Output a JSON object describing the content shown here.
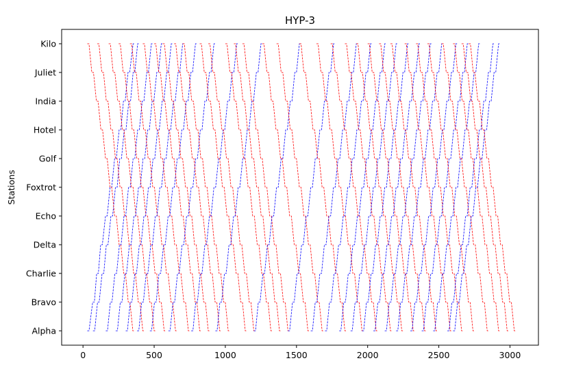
{
  "chart_data": {
    "type": "line",
    "title": "HYP-3",
    "xlabel": "",
    "ylabel": "Stations",
    "xlim": [
      -150,
      3200
    ],
    "ylim": [
      -0.5,
      10.5
    ],
    "xticks": [
      0,
      500,
      1000,
      1500,
      2000,
      2500,
      3000
    ],
    "categories": [
      "Alpha",
      "Bravo",
      "Charlie",
      "Delta",
      "Echo",
      "Foxtrot",
      "Golf",
      "Hotel",
      "India",
      "Juliet",
      "Kilo"
    ],
    "grid": false,
    "legend": "none",
    "line_style": "dashed",
    "dwell_time": 12,
    "colors": {
      "northbound": "#0000ff",
      "southbound": "#ff0000"
    },
    "series": [
      {
        "direction": "northbound",
        "color": "#0000ff",
        "x": [
          30,
          68,
          96,
          124,
          158,
          190,
          222,
          254,
          284,
          316,
          352
        ]
      },
      {
        "direction": "northbound",
        "color": "#0000ff",
        "x": [
          70,
          102,
          134,
          164,
          196,
          228,
          258,
          290,
          322,
          352,
          384
        ]
      },
      {
        "direction": "southbound",
        "color": "#ff0000",
        "x": [
          30,
          62,
          94,
          126,
          158,
          190,
          222,
          254,
          286,
          318,
          350
        ]
      },
      {
        "direction": "southbound",
        "color": "#ff0000",
        "x": [
          100,
          132,
          164,
          196,
          228,
          260,
          292,
          324,
          356,
          388,
          420
        ]
      },
      {
        "direction": "northbound",
        "color": "#0000ff",
        "x": [
          160,
          192,
          224,
          256,
          288,
          320,
          352,
          384,
          416,
          448,
          480
        ]
      },
      {
        "direction": "southbound",
        "color": "#ff0000",
        "x": [
          180,
          212,
          244,
          276,
          308,
          340,
          372,
          404,
          436,
          468,
          500
        ]
      },
      {
        "direction": "northbound",
        "color": "#0000ff",
        "x": [
          230,
          262,
          294,
          326,
          358,
          390,
          422,
          454,
          486,
          518,
          550
        ]
      },
      {
        "direction": "southbound",
        "color": "#ff0000",
        "x": [
          250,
          282,
          314,
          346,
          378,
          410,
          442,
          474,
          506,
          538,
          570
        ]
      },
      {
        "direction": "northbound",
        "color": "#0000ff",
        "x": [
          300,
          332,
          364,
          396,
          428,
          460,
          492,
          524,
          556,
          588,
          620
        ]
      },
      {
        "direction": "southbound",
        "color": "#ff0000",
        "x": [
          330,
          362,
          394,
          426,
          458,
          490,
          522,
          554,
          586,
          618,
          650
        ]
      },
      {
        "direction": "northbound",
        "color": "#0000ff",
        "x": [
          380,
          412,
          444,
          476,
          508,
          540,
          572,
          604,
          636,
          668,
          700
        ]
      },
      {
        "direction": "southbound",
        "color": "#ff0000",
        "x": [
          420,
          452,
          484,
          516,
          548,
          580,
          612,
          644,
          676,
          708,
          740
        ]
      },
      {
        "direction": "northbound",
        "color": "#0000ff",
        "x": [
          470,
          502,
          534,
          566,
          598,
          630,
          662,
          694,
          726,
          758,
          790
        ]
      },
      {
        "direction": "southbound",
        "color": "#ff0000",
        "x": [
          500,
          532,
          564,
          596,
          628,
          660,
          692,
          724,
          756,
          788,
          820
        ]
      },
      {
        "direction": "southbound",
        "color": "#ff0000",
        "x": [
          560,
          592,
          624,
          656,
          688,
          720,
          752,
          784,
          816,
          848,
          880
        ]
      },
      {
        "direction": "northbound",
        "color": "#0000ff",
        "x": [
          600,
          632,
          664,
          696,
          728,
          760,
          792,
          824,
          856,
          888,
          920
        ]
      },
      {
        "direction": "southbound",
        "color": "#ff0000",
        "x": [
          640,
          672,
          704,
          736,
          768,
          800,
          832,
          864,
          896,
          928,
          960
        ]
      },
      {
        "direction": "southbound",
        "color": "#ff0000",
        "x": [
          700,
          732,
          764,
          796,
          828,
          860,
          892,
          924,
          956,
          988,
          1020
        ]
      },
      {
        "direction": "northbound",
        "color": "#0000ff",
        "x": [
          760,
          792,
          824,
          856,
          888,
          920,
          952,
          984,
          1016,
          1048,
          1080
        ]
      },
      {
        "direction": "southbound",
        "color": "#ff0000",
        "x": [
          820,
          852,
          884,
          916,
          948,
          980,
          1012,
          1044,
          1076,
          1108,
          1140
        ]
      },
      {
        "direction": "southbound",
        "color": "#ff0000",
        "x": [
          880,
          912,
          944,
          976,
          1008,
          1040,
          1072,
          1104,
          1136,
          1168,
          1200
        ]
      },
      {
        "direction": "northbound",
        "color": "#0000ff",
        "x": [
          930,
          962,
          994,
          1026,
          1058,
          1090,
          1122,
          1154,
          1186,
          1218,
          1250
        ]
      },
      {
        "direction": "southbound",
        "color": "#ff0000",
        "x": [
          1000,
          1032,
          1064,
          1096,
          1128,
          1160,
          1192,
          1224,
          1256,
          1288,
          1320
        ]
      },
      {
        "direction": "southbound",
        "color": "#ff0000",
        "x": [
          1060,
          1092,
          1124,
          1156,
          1188,
          1220,
          1252,
          1284,
          1316,
          1348,
          1380
        ]
      },
      {
        "direction": "southbound",
        "color": "#ff0000",
        "x": [
          1120,
          1152,
          1184,
          1216,
          1248,
          1280,
          1312,
          1344,
          1376,
          1408,
          1440
        ]
      },
      {
        "direction": "northbound",
        "color": "#0000ff",
        "x": [
          1200,
          1232,
          1264,
          1296,
          1328,
          1360,
          1392,
          1424,
          1456,
          1488,
          1520
        ]
      },
      {
        "direction": "southbound",
        "color": "#ff0000",
        "x": [
          1260,
          1292,
          1324,
          1356,
          1388,
          1420,
          1452,
          1484,
          1516,
          1548,
          1580
        ]
      },
      {
        "direction": "southbound",
        "color": "#ff0000",
        "x": [
          1360,
          1392,
          1424,
          1456,
          1488,
          1520,
          1552,
          1584,
          1616,
          1648,
          1680
        ]
      },
      {
        "direction": "northbound",
        "color": "#0000ff",
        "x": [
          1440,
          1472,
          1504,
          1536,
          1568,
          1600,
          1632,
          1664,
          1696,
          1728,
          1760
        ]
      },
      {
        "direction": "southbound",
        "color": "#ff0000",
        "x": [
          1520,
          1552,
          1584,
          1616,
          1648,
          1680,
          1712,
          1744,
          1776,
          1808,
          1840
        ]
      },
      {
        "direction": "northbound",
        "color": "#0000ff",
        "x": [
          1600,
          1632,
          1664,
          1696,
          1728,
          1760,
          1792,
          1824,
          1856,
          1888,
          1920
        ]
      },
      {
        "direction": "southbound",
        "color": "#ff0000",
        "x": [
          1640,
          1672,
          1704,
          1736,
          1768,
          1800,
          1832,
          1864,
          1896,
          1928,
          1960
        ]
      },
      {
        "direction": "northbound",
        "color": "#0000ff",
        "x": [
          1700,
          1732,
          1764,
          1796,
          1828,
          1860,
          1892,
          1924,
          1956,
          1988,
          2020
        ]
      },
      {
        "direction": "southbound",
        "color": "#ff0000",
        "x": [
          1740,
          1772,
          1804,
          1836,
          1868,
          1900,
          1932,
          1964,
          1996,
          2028,
          2060
        ]
      },
      {
        "direction": "northbound",
        "color": "#0000ff",
        "x": [
          1800,
          1832,
          1864,
          1896,
          1928,
          1960,
          1992,
          2024,
          2056,
          2088,
          2120
        ]
      },
      {
        "direction": "southbound",
        "color": "#ff0000",
        "x": [
          1840,
          1872,
          1904,
          1936,
          1968,
          2000,
          2032,
          2064,
          2096,
          2128,
          2160
        ]
      },
      {
        "direction": "northbound",
        "color": "#0000ff",
        "x": [
          1880,
          1912,
          1944,
          1976,
          2008,
          2040,
          2072,
          2104,
          2136,
          2168,
          2200
        ]
      },
      {
        "direction": "southbound",
        "color": "#ff0000",
        "x": [
          1920,
          1952,
          1984,
          2016,
          2048,
          2080,
          2112,
          2144,
          2176,
          2208,
          2240
        ]
      },
      {
        "direction": "northbound",
        "color": "#0000ff",
        "x": [
          1960,
          1992,
          2024,
          2056,
          2088,
          2120,
          2152,
          2184,
          2216,
          2248,
          2280
        ]
      },
      {
        "direction": "southbound",
        "color": "#ff0000",
        "x": [
          2000,
          2032,
          2064,
          2096,
          2128,
          2160,
          2192,
          2224,
          2256,
          2288,
          2320
        ]
      },
      {
        "direction": "northbound",
        "color": "#0000ff",
        "x": [
          2040,
          2072,
          2104,
          2136,
          2168,
          2200,
          2232,
          2264,
          2296,
          2328,
          2360
        ]
      },
      {
        "direction": "southbound",
        "color": "#ff0000",
        "x": [
          2080,
          2112,
          2144,
          2176,
          2208,
          2240,
          2272,
          2304,
          2336,
          2368,
          2400
        ]
      },
      {
        "direction": "northbound",
        "color": "#0000ff",
        "x": [
          2120,
          2152,
          2184,
          2216,
          2248,
          2280,
          2312,
          2344,
          2376,
          2408,
          2440
        ]
      },
      {
        "direction": "southbound",
        "color": "#ff0000",
        "x": [
          2160,
          2192,
          2224,
          2256,
          2288,
          2320,
          2352,
          2384,
          2416,
          2448,
          2480
        ]
      },
      {
        "direction": "northbound",
        "color": "#0000ff",
        "x": [
          2200,
          2232,
          2264,
          2296,
          2328,
          2360,
          2392,
          2424,
          2456,
          2488,
          2520
        ]
      },
      {
        "direction": "southbound",
        "color": "#ff0000",
        "x": [
          2260,
          2292,
          2324,
          2356,
          2388,
          2420,
          2452,
          2484,
          2516,
          2548,
          2580
        ]
      },
      {
        "direction": "northbound",
        "color": "#0000ff",
        "x": [
          2300,
          2332,
          2364,
          2396,
          2428,
          2460,
          2492,
          2524,
          2556,
          2588,
          2620
        ]
      },
      {
        "direction": "southbound",
        "color": "#ff0000",
        "x": [
          2340,
          2372,
          2404,
          2436,
          2468,
          2500,
          2532,
          2564,
          2596,
          2628,
          2660
        ]
      },
      {
        "direction": "northbound",
        "color": "#0000ff",
        "x": [
          2380,
          2412,
          2444,
          2476,
          2508,
          2540,
          2572,
          2604,
          2636,
          2668,
          2700
        ]
      },
      {
        "direction": "southbound",
        "color": "#ff0000",
        "x": [
          2420,
          2452,
          2484,
          2516,
          2548,
          2580,
          2612,
          2644,
          2676,
          2708,
          2740
        ]
      },
      {
        "direction": "northbound",
        "color": "#0000ff",
        "x": [
          2460,
          2492,
          2524,
          2556,
          2588,
          2620,
          2652,
          2684,
          2716,
          2748,
          2780
        ]
      },
      {
        "direction": "southbound",
        "color": "#ff0000",
        "x": [
          2520,
          2552,
          2584,
          2616,
          2648,
          2680,
          2712,
          2744,
          2776,
          2808,
          2840
        ]
      },
      {
        "direction": "northbound",
        "color": "#0000ff",
        "x": [
          2560,
          2592,
          2624,
          2656,
          2688,
          2720,
          2752,
          2784,
          2816,
          2848,
          2880
        ]
      },
      {
        "direction": "southbound",
        "color": "#ff0000",
        "x": [
          2600,
          2632,
          2664,
          2696,
          2728,
          2760,
          2792,
          2824,
          2856,
          2888,
          2920
        ]
      },
      {
        "direction": "southbound",
        "color": "#ff0000",
        "x": [
          2660,
          2692,
          2724,
          2756,
          2788,
          2820,
          2852,
          2884,
          2916,
          2948,
          2980
        ]
      },
      {
        "direction": "northbound",
        "color": "#0000ff",
        "x": [
          2600,
          2632,
          2664,
          2696,
          2728,
          2760,
          2792,
          2824,
          2856,
          2888,
          2920
        ]
      },
      {
        "direction": "southbound",
        "color": "#ff0000",
        "x": [
          2710,
          2742,
          2774,
          2806,
          2838,
          2870,
          2902,
          2934,
          2966,
          2998,
          3030
        ]
      }
    ]
  }
}
